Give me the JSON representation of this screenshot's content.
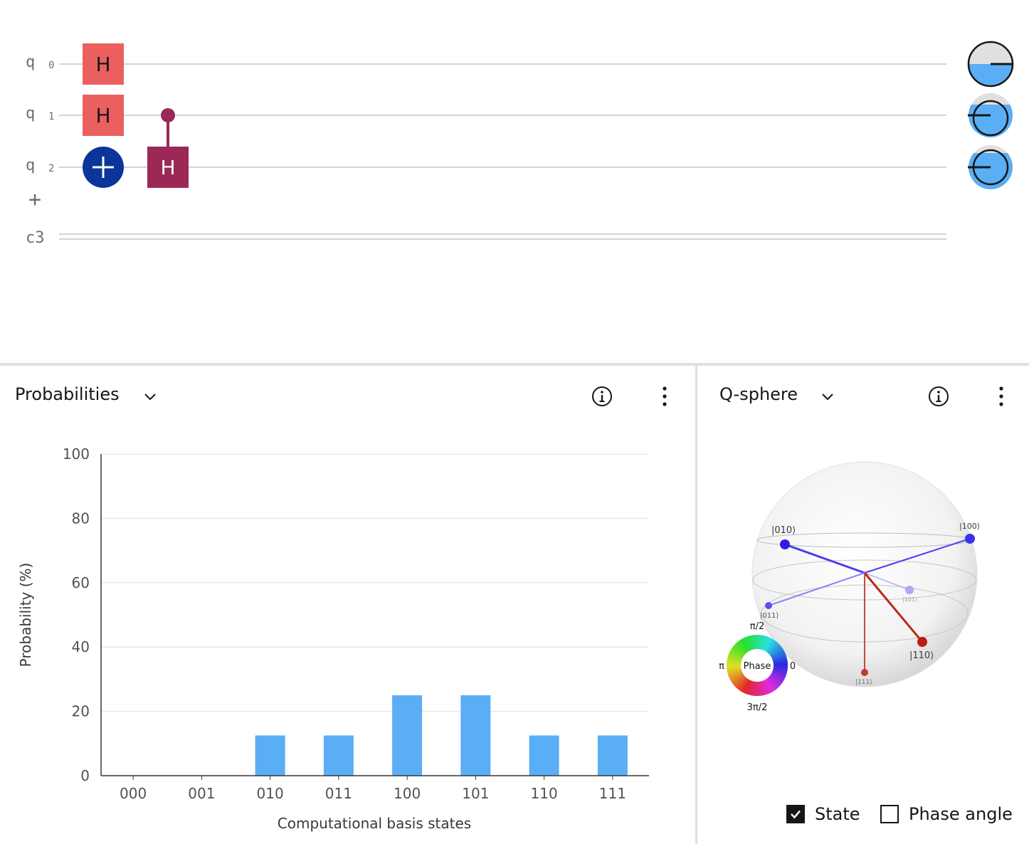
{
  "circuit": {
    "qubits": [
      {
        "label": "q",
        "index": "0"
      },
      {
        "label": "q",
        "index": "1"
      },
      {
        "label": "q",
        "index": "2"
      }
    ],
    "classical_label": "c3",
    "add_label": "+",
    "gates": {
      "h0": "H",
      "h1": "H",
      "ch": "H"
    }
  },
  "probabilities_panel": {
    "title": "Probabilities"
  },
  "qsphere_panel": {
    "title": "Q-sphere",
    "phase_wheel": {
      "center_label": "Phase",
      "top": "π/2",
      "left": "π",
      "right": "0",
      "bottom": "3π/2"
    },
    "state_labels": {
      "s010": "|010⟩",
      "s100": "|100⟩",
      "s011": "|011⟩",
      "s101": "|101⟩",
      "s110": "|110⟩",
      "s111": "|111⟩"
    },
    "checkboxes": {
      "state": {
        "label": "State",
        "checked": true
      },
      "phase_angle": {
        "label": "Phase angle",
        "checked": false
      }
    }
  },
  "chart_data": {
    "type": "bar",
    "categories": [
      "000",
      "001",
      "010",
      "011",
      "100",
      "101",
      "110",
      "111"
    ],
    "values": [
      0,
      0,
      12.5,
      12.5,
      25,
      25,
      12.5,
      12.5
    ],
    "xlabel": "Computational basis states",
    "ylabel": "Probability (%)",
    "ylim": [
      0,
      100
    ],
    "yticks": [
      0,
      20,
      40,
      60,
      80,
      100
    ],
    "bar_color": "#5aaef5",
    "grid": true
  },
  "colors": {
    "h_gate": "#eb5f5f",
    "controlled_gate": "#9a2957",
    "cnot_target": "#0b3699",
    "probability_bar": "#5aaef5",
    "wire": "#d4d4d4"
  }
}
